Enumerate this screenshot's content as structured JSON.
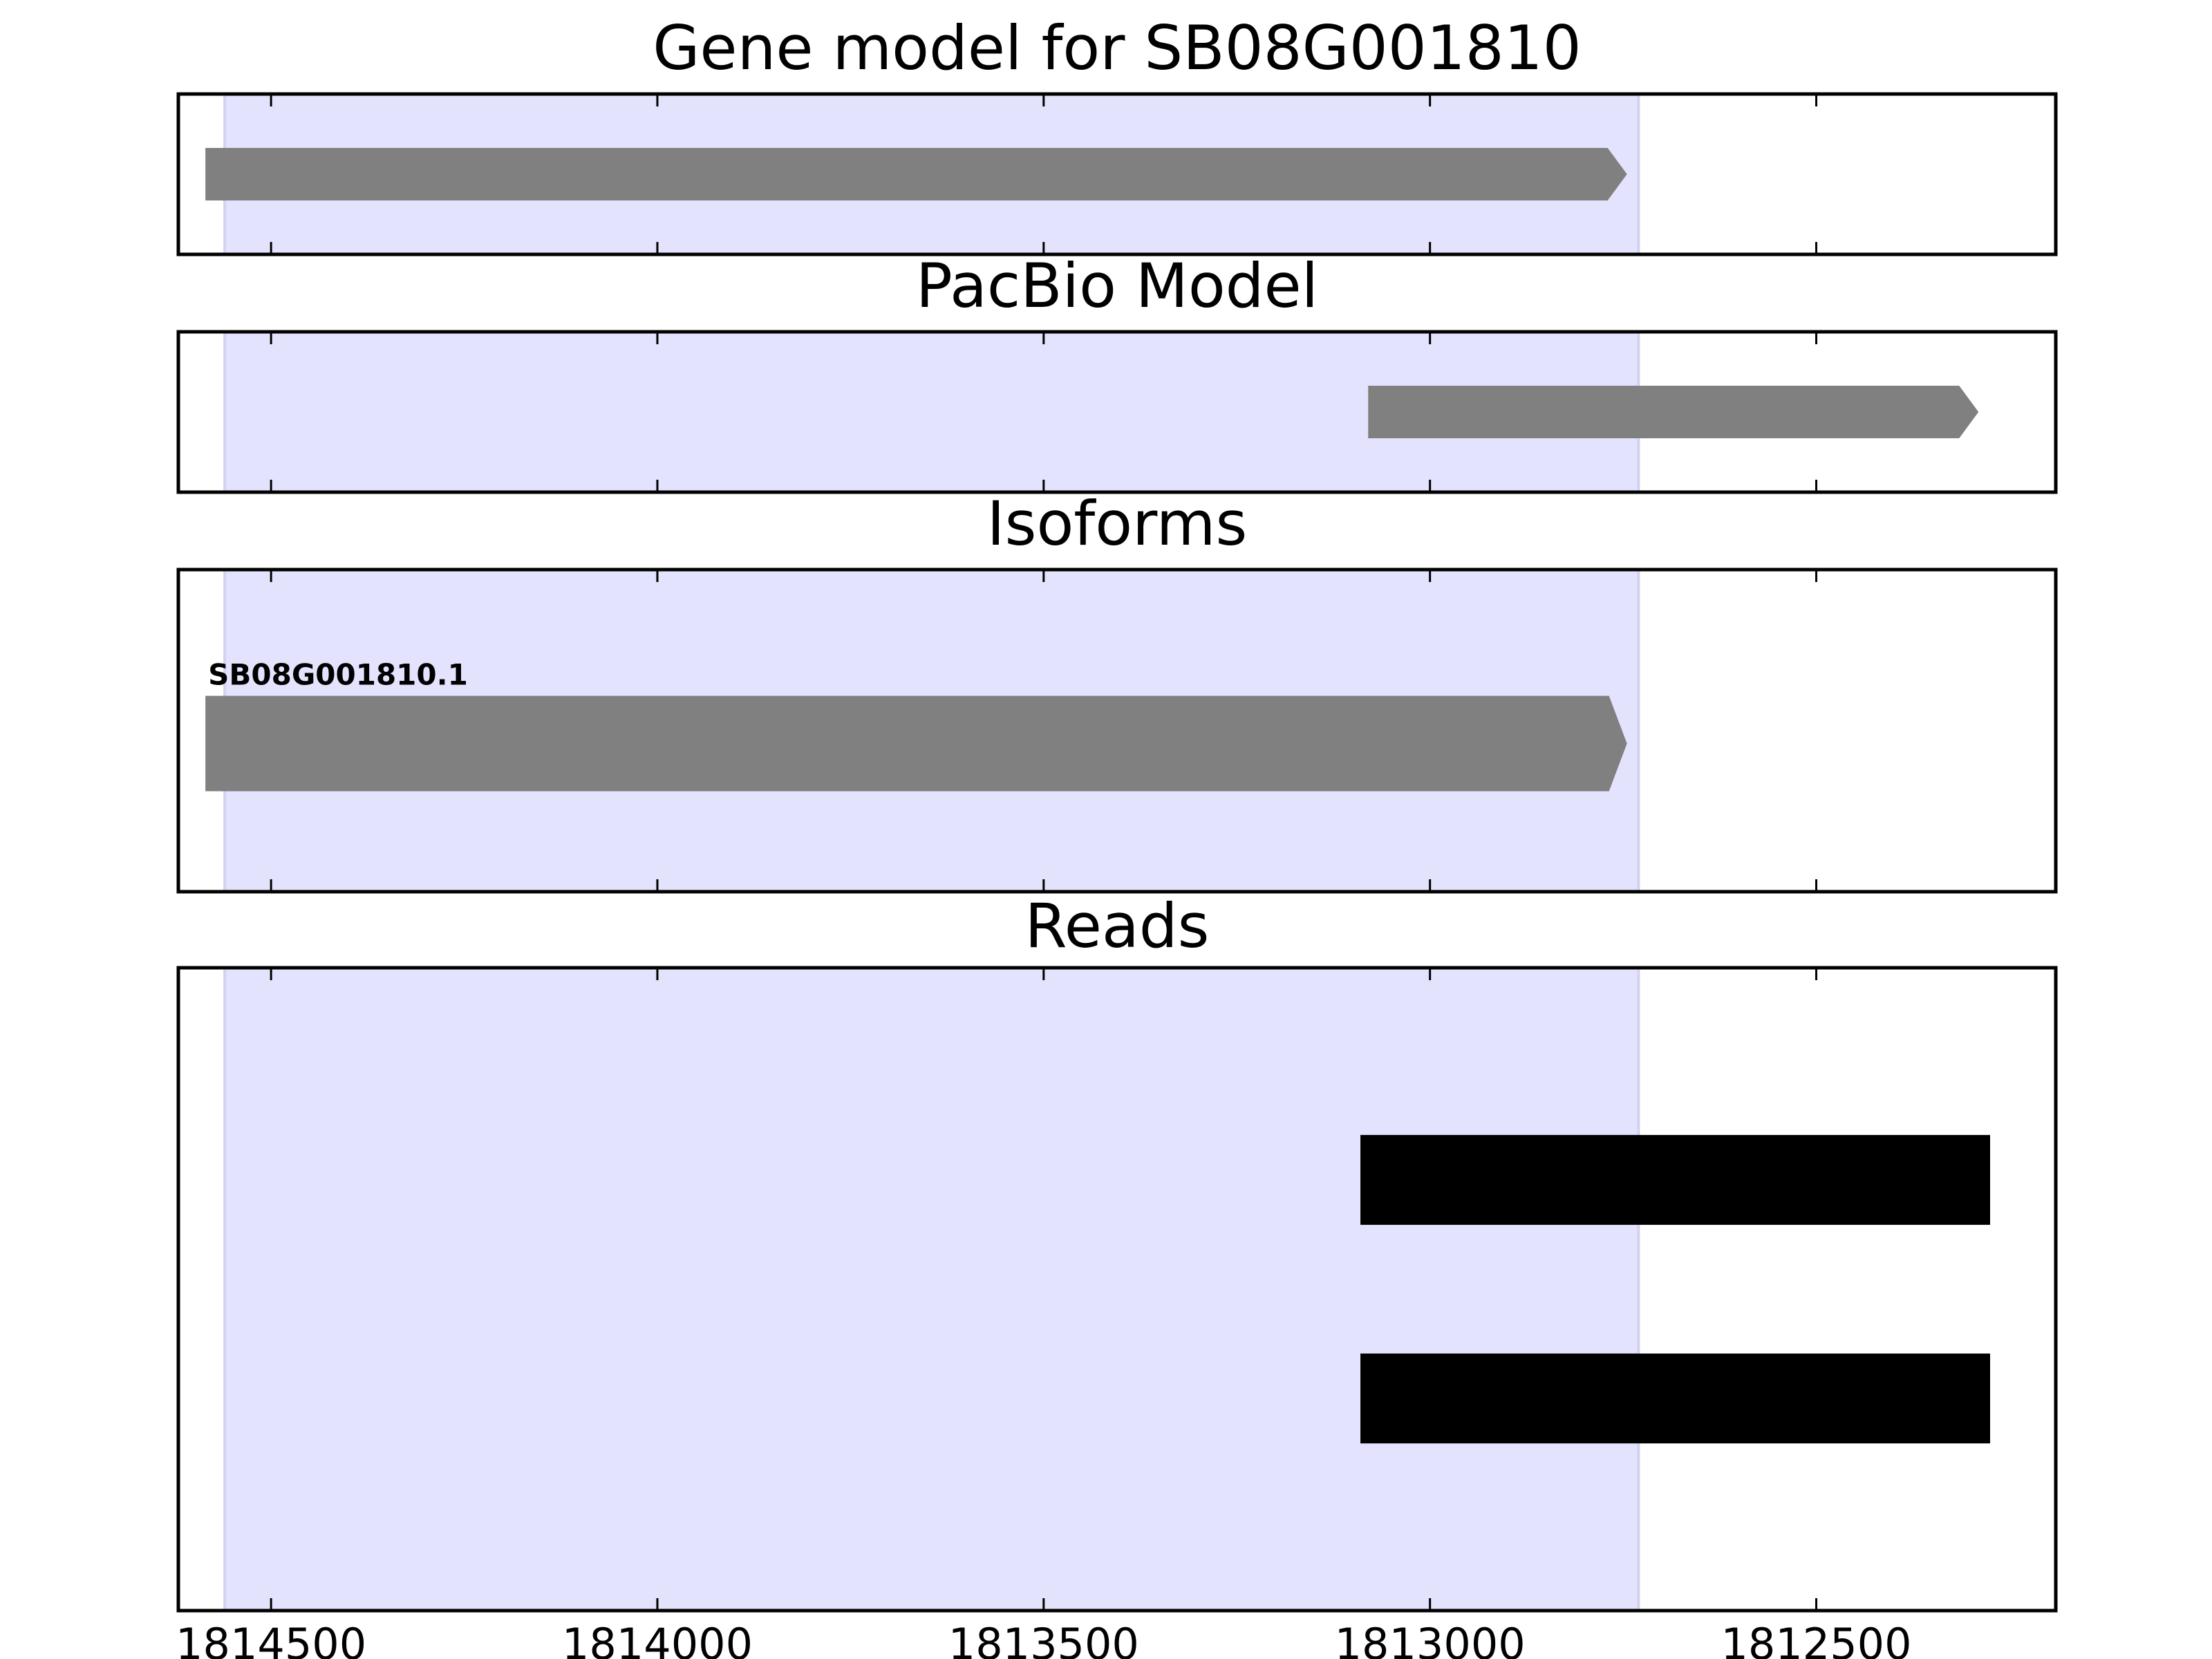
{
  "chart_data": {
    "type": "gene-track",
    "xaxis": {
      "reversed": true,
      "xlim": [
        1814620,
        1812190
      ],
      "ticks": [
        1814500,
        1814000,
        1813500,
        1813000,
        1812500
      ],
      "tick_labels": [
        "1814500",
        "1814000",
        "1813500",
        "1813000",
        "1812500"
      ]
    },
    "highlight_region": {
      "start": 1814560,
      "end": 1812730,
      "color": "#e3e3fd"
    },
    "panels": [
      {
        "id": "gene-model",
        "title": "Gene model for SB08G001810",
        "features": [
          {
            "start": 1814585,
            "end": 1812745,
            "y": 0.5,
            "color": "#808080",
            "kind": "arrow"
          }
        ]
      },
      {
        "id": "pacbio-model",
        "title": "PacBio Model",
        "features": [
          {
            "start": 1813080,
            "end": 1812290,
            "y": 0.5,
            "color": "#808080",
            "kind": "arrow"
          }
        ]
      },
      {
        "id": "isoforms",
        "title": "Isoforms",
        "features": [
          {
            "start": 1814585,
            "end": 1812745,
            "y": 0.46,
            "color": "#808080",
            "kind": "arrow",
            "label": "SB08G001810.1"
          }
        ]
      },
      {
        "id": "reads",
        "title": "Reads",
        "features": [
          {
            "start": 1813090,
            "end": 1812275,
            "y": 0.67,
            "color": "#000000",
            "kind": "bar"
          },
          {
            "start": 1813090,
            "end": 1812275,
            "y": 0.33,
            "color": "#000000",
            "kind": "bar"
          }
        ]
      }
    ]
  }
}
